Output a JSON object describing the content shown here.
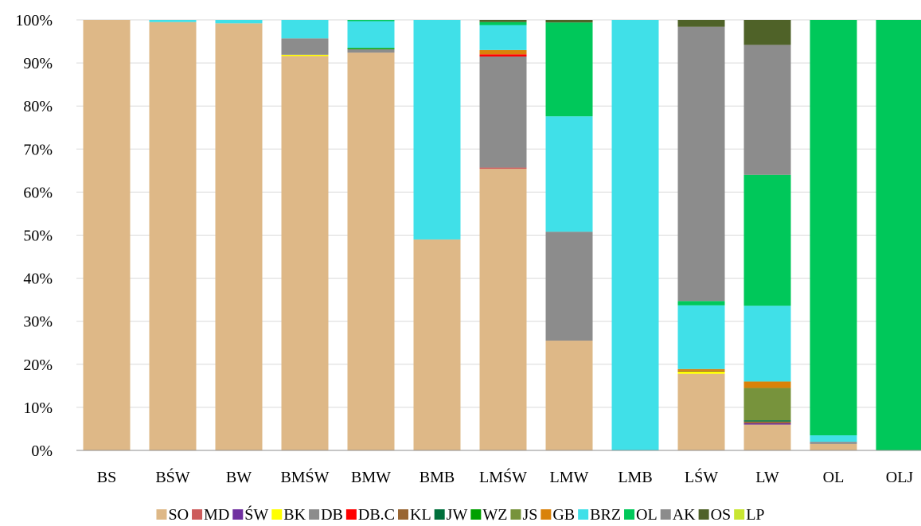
{
  "chart_data": {
    "type": "bar",
    "stacked": true,
    "percent": true,
    "categories": [
      "BS",
      "BŚW",
      "BW",
      "BMŚW",
      "BMW",
      "BMB",
      "LMŚW",
      "LMW",
      "LMB",
      "LŚW",
      "LW",
      "OL",
      "OLJ"
    ],
    "ylim": [
      0,
      100
    ],
    "yticks": [
      "0%",
      "10%",
      "20%",
      "30%",
      "40%",
      "50%",
      "60%",
      "70%",
      "80%",
      "90%",
      "100%"
    ],
    "grid": true,
    "legend_position": "bottom",
    "series": [
      {
        "name": "SO",
        "color": "#DEB887",
        "values": [
          100,
          99.5,
          99.2,
          91.6,
          92.4,
          49,
          65.4,
          25.5,
          0,
          17.8,
          6,
          1.5,
          0
        ]
      },
      {
        "name": "MD",
        "color": "#CD5C5C",
        "values": [
          0,
          0,
          0,
          0,
          0,
          0,
          0.3,
          0,
          0,
          0,
          0,
          0,
          0
        ]
      },
      {
        "name": "ŚW",
        "color": "#7030A0",
        "values": [
          0,
          0,
          0,
          0,
          0,
          0,
          0,
          0,
          0,
          0,
          0.3,
          0,
          0
        ]
      },
      {
        "name": "BK",
        "color": "#FFFF00",
        "values": [
          0,
          0,
          0,
          0.3,
          0,
          0,
          0,
          0,
          0,
          0.5,
          0,
          0,
          0
        ]
      },
      {
        "name": "DB",
        "color": "#8C8C8C",
        "values": [
          0,
          0,
          0,
          3.8,
          0.8,
          0,
          25.8,
          25.3,
          0,
          0,
          0,
          0.5,
          0
        ]
      },
      {
        "name": "DB.C",
        "color": "#FF0000",
        "values": [
          0,
          0,
          0,
          0,
          0,
          0,
          0.5,
          0,
          0,
          0,
          0,
          0,
          0
        ]
      },
      {
        "name": "KL",
        "color": "#996633",
        "values": [
          0,
          0,
          0,
          0,
          0,
          0,
          0,
          0,
          0,
          0.2,
          0.4,
          0,
          0
        ]
      },
      {
        "name": "JW",
        "color": "#00703C",
        "values": [
          0,
          0,
          0,
          0,
          0,
          0,
          0,
          0,
          0,
          0,
          0.3,
          0,
          0
        ]
      },
      {
        "name": "WZ",
        "color": "#00A000",
        "values": [
          0,
          0,
          0,
          0,
          0.3,
          0,
          0,
          0,
          0,
          0,
          0,
          0,
          0
        ]
      },
      {
        "name": "JS",
        "color": "#77933C",
        "values": [
          0,
          0,
          0,
          0,
          0,
          0,
          0,
          0,
          0,
          0,
          7.5,
          0,
          0
        ]
      },
      {
        "name": "GB",
        "color": "#D9820A",
        "values": [
          0,
          0,
          0,
          0,
          0,
          0,
          1,
          0,
          0,
          0.4,
          1.5,
          0,
          0
        ]
      },
      {
        "name": "BRZ",
        "color": "#40E0E8",
        "values": [
          0,
          0.5,
          0.8,
          4.3,
          6.2,
          51,
          5.8,
          26.8,
          100,
          14.8,
          17.6,
          1.5,
          0
        ]
      },
      {
        "name": "OL",
        "color": "#00C85A",
        "values": [
          0,
          0,
          0,
          0,
          0.3,
          0,
          0.7,
          21.8,
          0,
          1,
          30.4,
          96.5,
          100
        ]
      },
      {
        "name": "AK",
        "color": "#8C8C8C",
        "values": [
          0,
          0,
          0,
          0,
          0,
          0,
          0,
          0,
          0,
          63.7,
          30.2,
          0,
          0
        ]
      },
      {
        "name": "OS",
        "color": "#4F6228",
        "values": [
          0,
          0,
          0,
          0,
          0,
          0,
          0.5,
          0.6,
          0,
          1.6,
          5.8,
          0,
          0
        ]
      },
      {
        "name": "LP",
        "color": "#C8E632",
        "values": [
          0,
          0,
          0,
          0,
          0,
          0,
          0,
          0,
          0,
          0,
          0,
          0,
          0
        ]
      }
    ]
  }
}
